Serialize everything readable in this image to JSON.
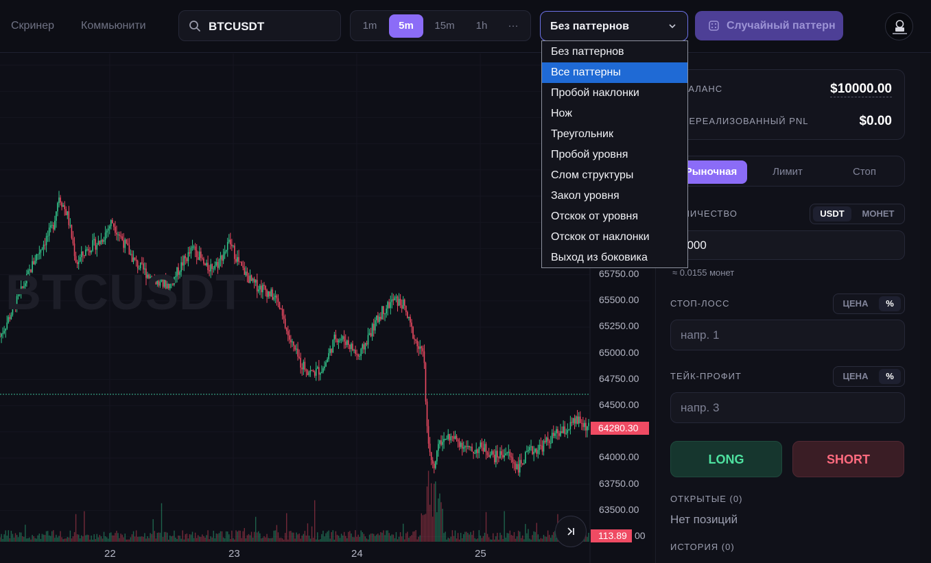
{
  "nav": {
    "screener": "Скринер",
    "community": "Коммьюнити"
  },
  "search": {
    "value": "BTCUSDT"
  },
  "timeframes": {
    "items": [
      "1m",
      "5m",
      "15m",
      "1h",
      "···"
    ],
    "active": "5m"
  },
  "pattern_select": {
    "value": "Без паттернов",
    "options": [
      "Без паттернов",
      "Все паттерны",
      "Пробой наклонки",
      "Нож",
      "Треугольник",
      "Пробой уровня",
      "Слом структуры",
      "Закол уровня",
      "Отскок от уровня",
      "Отскок от наклонки",
      "Выход из боковика"
    ],
    "highlighted": "Все паттерны"
  },
  "random_button": {
    "label": "Случайный паттерн"
  },
  "chart": {
    "watermark": "BTCUSDT",
    "y_labels": [
      "65750.00",
      "65500.00",
      "65250.00",
      "65000.00",
      "64750.00",
      "64500.00",
      "64000.00",
      "63750.00",
      "63500.00",
      "00"
    ],
    "current_price": "64280.30",
    "volume_value": "113.89",
    "x_labels": [
      "22",
      "23",
      "24",
      "25"
    ],
    "up_color": "#34c98e",
    "down_color": "#ef4b63"
  },
  "chart_data": {
    "type": "candlestick",
    "title": "BTCUSDT",
    "timeframe": "5m",
    "x_ticks": [
      "22",
      "23",
      "24",
      "25"
    ],
    "ylim": [
      63400,
      66750
    ],
    "close_path": [
      [
        0,
        65150
      ],
      [
        0.03,
        65500
      ],
      [
        0.06,
        65900
      ],
      [
        0.09,
        66200
      ],
      [
        0.1,
        66500
      ],
      [
        0.115,
        66300
      ],
      [
        0.13,
        65850
      ],
      [
        0.15,
        66000
      ],
      [
        0.17,
        66050
      ],
      [
        0.19,
        66250
      ],
      [
        0.21,
        66050
      ],
      [
        0.23,
        65850
      ],
      [
        0.25,
        65750
      ],
      [
        0.27,
        65650
      ],
      [
        0.29,
        65650
      ],
      [
        0.31,
        65850
      ],
      [
        0.33,
        66000
      ],
      [
        0.35,
        65800
      ],
      [
        0.37,
        65850
      ],
      [
        0.39,
        66050
      ],
      [
        0.41,
        65800
      ],
      [
        0.43,
        65650
      ],
      [
        0.45,
        65600
      ],
      [
        0.47,
        65500
      ],
      [
        0.49,
        65150
      ],
      [
        0.51,
        64900
      ],
      [
        0.53,
        64800
      ],
      [
        0.55,
        64850
      ],
      [
        0.57,
        65150
      ],
      [
        0.59,
        65100
      ],
      [
        0.61,
        64950
      ],
      [
        0.63,
        65200
      ],
      [
        0.65,
        65400
      ],
      [
        0.67,
        65500
      ],
      [
        0.685,
        65450
      ],
      [
        0.7,
        65200
      ],
      [
        0.71,
        65050
      ],
      [
        0.72,
        64950
      ],
      [
        0.725,
        64300
      ],
      [
        0.735,
        63900
      ],
      [
        0.745,
        64100
      ],
      [
        0.76,
        64200
      ],
      [
        0.78,
        64150
      ],
      [
        0.8,
        64050
      ],
      [
        0.82,
        64100
      ],
      [
        0.84,
        64000
      ],
      [
        0.86,
        64050
      ],
      [
        0.88,
        63900
      ],
      [
        0.9,
        64050
      ],
      [
        0.92,
        64100
      ],
      [
        0.94,
        64200
      ],
      [
        0.96,
        64250
      ],
      [
        0.98,
        64350
      ],
      [
        1.0,
        64280
      ]
    ],
    "last_price": 64280.3,
    "last_volume": 113.89
  },
  "panel": {
    "balance_label": "БАЛАНС",
    "balance_value": "$10000.00",
    "pnl_label": "НЕРЕАЛИЗОВАННЫЙ PNL",
    "pnl_value": "$0.00",
    "order_tabs": [
      "Рыночная",
      "Лимит",
      "Стоп"
    ],
    "qty_label": "КОЛИЧЕСТВО",
    "qty_toggle": [
      "USDT",
      "МОНЕТ"
    ],
    "qty_value": "1000",
    "qty_hint": "≈ 0.0155 монет",
    "sl_label": "СТОП-ЛОСС",
    "sl_toggle": [
      "ЦЕНА",
      "%"
    ],
    "sl_placeholder": "напр. 1",
    "tp_label": "ТЕЙК-ПРОФИТ",
    "tp_toggle": [
      "ЦЕНА",
      "%"
    ],
    "tp_placeholder": "напр. 3",
    "long": "LONG",
    "short": "SHORT",
    "open_positions_label": "ОТКРЫТЫЕ (0)",
    "no_positions": "Нет позиций",
    "history_label": "ИСТОРИЯ (0)"
  }
}
